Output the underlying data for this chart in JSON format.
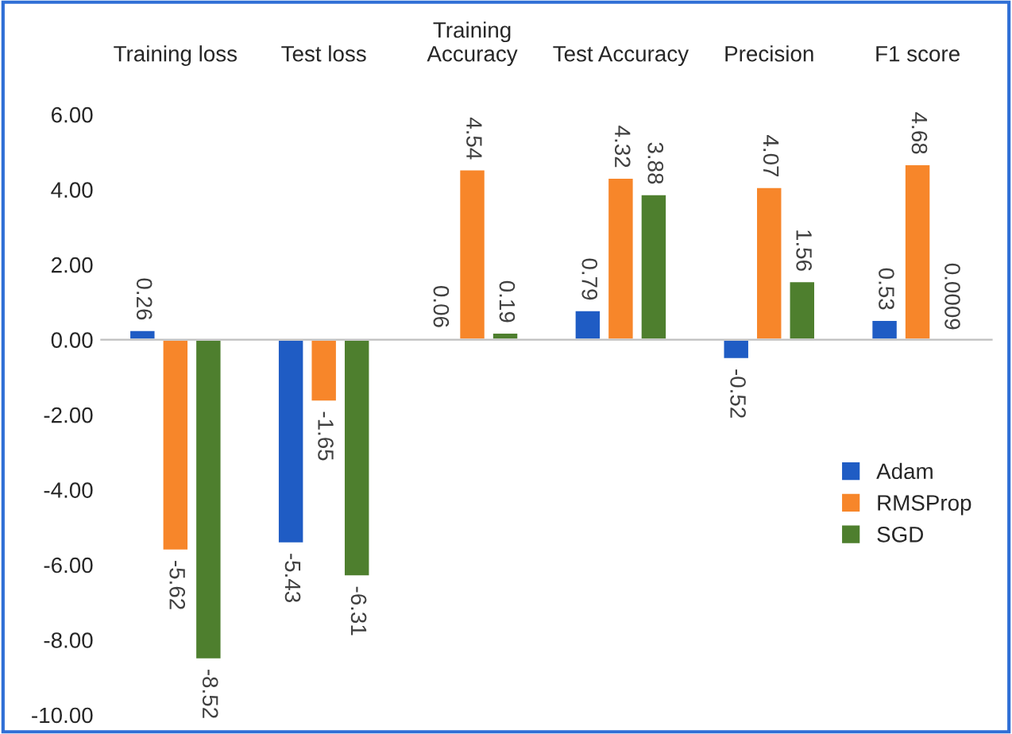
{
  "chart_data": {
    "type": "bar",
    "categories": [
      "Training loss",
      "Test loss",
      "Training\nAccuracy",
      "Test Accuracy",
      "Precision",
      "F1 score"
    ],
    "series": [
      {
        "name": "Adam",
        "color": "#1f5cc4",
        "values": [
          0.26,
          -5.43,
          0.06,
          0.79,
          -0.52,
          0.53
        ],
        "value_labels": [
          "0.26",
          "-5.43",
          "0.06",
          "0.79",
          "-0.52",
          "0.53"
        ]
      },
      {
        "name": "RMSProp",
        "color": "#f7862a",
        "values": [
          -5.62,
          -1.65,
          4.54,
          4.32,
          4.07,
          4.68
        ],
        "value_labels": [
          "-5.62",
          "-1.65",
          "4.54",
          "4.32",
          "4.07",
          "4.68"
        ]
      },
      {
        "name": "SGD",
        "color": "#4e7f2e",
        "values": [
          -8.52,
          -6.31,
          0.19,
          3.88,
          1.56,
          0.0009
        ],
        "value_labels": [
          "-8.52",
          "-6.31",
          "0.19",
          "3.88",
          "1.56",
          "0.0009"
        ]
      }
    ],
    "ylim": [
      -10,
      6
    ],
    "yticks": [
      {
        "value": -10,
        "label": "-10.00"
      },
      {
        "value": -8,
        "label": "-8.00"
      },
      {
        "value": -6,
        "label": "-6.00"
      },
      {
        "value": -4,
        "label": "-4.00"
      },
      {
        "value": -2,
        "label": "-2.00"
      },
      {
        "value": 0,
        "label": "0.00"
      },
      {
        "value": 2,
        "label": "2.00"
      },
      {
        "value": 4,
        "label": "4.00"
      },
      {
        "value": 6,
        "label": "6.00"
      }
    ],
    "legend": "right"
  }
}
